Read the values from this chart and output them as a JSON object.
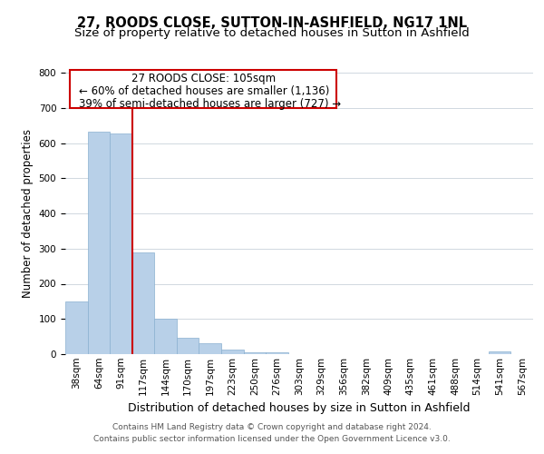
{
  "title": "27, ROODS CLOSE, SUTTON-IN-ASHFIELD, NG17 1NL",
  "subtitle": "Size of property relative to detached houses in Sutton in Ashfield",
  "xlabel": "Distribution of detached houses by size in Sutton in Ashfield",
  "ylabel": "Number of detached properties",
  "footer_line1": "Contains HM Land Registry data © Crown copyright and database right 2024.",
  "footer_line2": "Contains public sector information licensed under the Open Government Licence v3.0.",
  "bin_labels": [
    "38sqm",
    "64sqm",
    "91sqm",
    "117sqm",
    "144sqm",
    "170sqm",
    "197sqm",
    "223sqm",
    "250sqm",
    "276sqm",
    "303sqm",
    "329sqm",
    "356sqm",
    "382sqm",
    "409sqm",
    "435sqm",
    "461sqm",
    "488sqm",
    "514sqm",
    "541sqm",
    "567sqm"
  ],
  "bar_values": [
    149,
    632,
    628,
    288,
    101,
    46,
    32,
    13,
    5,
    5,
    0,
    0,
    0,
    0,
    0,
    0,
    0,
    0,
    0,
    7,
    0
  ],
  "bar_color": "#b8d0e8",
  "bar_edge_color": "#8ab0d0",
  "vline_x": 3,
  "vline_color": "#cc0000",
  "ann_line1": "27 ROODS CLOSE: 105sqm",
  "ann_line2": "← 60% of detached houses are smaller (1,136)",
  "ann_line3": "39% of semi-detached houses are larger (727) →",
  "ylim": [
    0,
    800
  ],
  "yticks": [
    0,
    100,
    200,
    300,
    400,
    500,
    600,
    700,
    800
  ],
  "background_color": "#ffffff",
  "grid_color": "#d0d8e0",
  "title_fontsize": 10.5,
  "subtitle_fontsize": 9.5,
  "xlabel_fontsize": 9,
  "ylabel_fontsize": 8.5,
  "tick_fontsize": 7.5,
  "annotation_fontsize": 8.5,
  "footer_fontsize": 6.5
}
